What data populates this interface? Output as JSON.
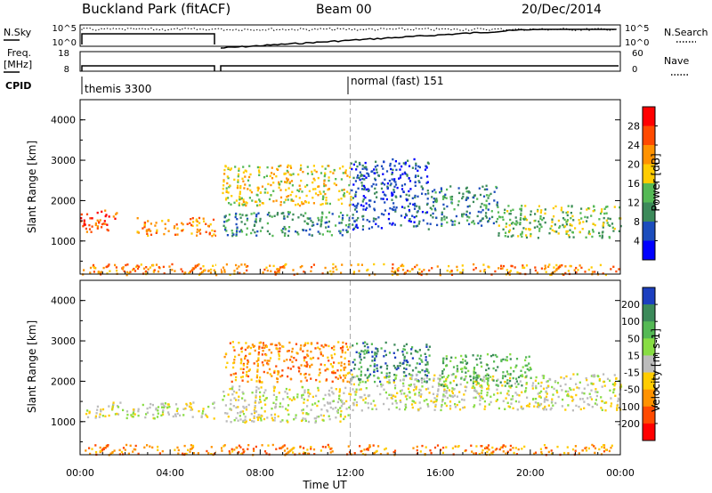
{
  "header": {
    "station": "Buckland Park (fitACF)",
    "beam": "Beam 00",
    "date": "20/Dec/2014"
  },
  "chart_data": [
    {
      "type": "line",
      "panel": "noise",
      "left_label": "N.Sky",
      "right_label": "N.Search",
      "left_ticks": [
        "10^5",
        "10^0"
      ],
      "right_ticks": [
        "10^5",
        "10^0"
      ]
    },
    {
      "type": "line",
      "panel": "frequency",
      "left_label": "Freq.",
      "left_unit": "[MHz]",
      "right_label": "Nave",
      "left_ticks": [
        "18",
        "8"
      ],
      "right_ticks": [
        "60",
        "0"
      ]
    },
    {
      "type": "table",
      "panel": "cpid",
      "label": "CPID",
      "segments": [
        {
          "name": "themis 3300",
          "start_h": 0
        },
        {
          "name": "normal (fast) 151",
          "start_h": 12
        }
      ]
    },
    {
      "type": "heatmap",
      "panel": "power",
      "ylabel": "Slant Range [km]",
      "xlim": [
        0,
        24
      ],
      "ylim": [
        180,
        4500
      ],
      "yticks": [
        1000,
        2000,
        3000,
        4000
      ],
      "colorbar": {
        "label": "Power [dB]",
        "ticks": [
          "28",
          "24",
          "20",
          "16",
          "12",
          "8",
          "4"
        ],
        "colors": [
          "#ff0000",
          "#ff4a00",
          "#ff9200",
          "#ffcc00",
          "#55b955",
          "#3c8a5a",
          "#1c4dbd",
          "#0000ff"
        ]
      },
      "bands": [
        {
          "t0": 0,
          "t1": 1.6,
          "r0": 1250,
          "r1": 1800,
          "level": 1
        },
        {
          "t0": 2.5,
          "t1": 6,
          "r0": 1150,
          "r1": 1600,
          "level": 2
        },
        {
          "t0": 6.3,
          "t1": 12,
          "r0": 1150,
          "r1": 1750,
          "level": 5
        },
        {
          "t0": 6.3,
          "t1": 12,
          "r0": 1900,
          "r1": 2900,
          "level": 3
        },
        {
          "t0": 12,
          "t1": 15.5,
          "r0": 1300,
          "r1": 3050,
          "level": 6
        },
        {
          "t0": 15.5,
          "t1": 18.5,
          "r0": 1400,
          "r1": 2400,
          "level": 5
        },
        {
          "t0": 18.5,
          "t1": 24,
          "r0": 1100,
          "r1": 1900,
          "level": 4
        },
        {
          "t0": 0,
          "t1": 24,
          "r0": 180,
          "r1": 450,
          "level": 2
        }
      ]
    },
    {
      "type": "heatmap",
      "panel": "velocity",
      "ylabel": "Slant Range [km]",
      "xlabel": "Time UT",
      "xlim": [
        0,
        24
      ],
      "ylim": [
        180,
        4500
      ],
      "yticks": [
        1000,
        2000,
        3000,
        4000
      ],
      "xticks": [
        "00:00",
        "04:00",
        "08:00",
        "12:00",
        "16:00",
        "20:00",
        "00:00"
      ],
      "colorbar": {
        "label": "Velocity [m s-1]",
        "ticks": [
          "200",
          "100",
          "50",
          "15",
          "-15",
          "-50",
          "-100",
          "-200"
        ],
        "colors": [
          "#1c3fbf",
          "#3c8a5a",
          "#55b955",
          "#88dd44",
          "#bcbcbc",
          "#ffcc00",
          "#ff9200",
          "#ff4a00",
          "#ff0000"
        ]
      },
      "bands": [
        {
          "t0": 0,
          "t1": 6,
          "r0": 1100,
          "r1": 1500,
          "level": 4
        },
        {
          "t0": 6.3,
          "t1": 12,
          "r0": 1000,
          "r1": 1900,
          "level": 4
        },
        {
          "t0": 6.3,
          "t1": 12,
          "r0": 2000,
          "r1": 3000,
          "level": 6
        },
        {
          "t0": 12,
          "t1": 15.5,
          "r0": 2000,
          "r1": 3000,
          "level": 1
        },
        {
          "t0": 12,
          "t1": 24,
          "r0": 1300,
          "r1": 2200,
          "level": 4
        },
        {
          "t0": 16,
          "t1": 20,
          "r0": 1900,
          "r1": 2700,
          "level": 2
        },
        {
          "t0": 0,
          "t1": 24,
          "r0": 200,
          "r1": 450,
          "level": 6
        }
      ]
    }
  ]
}
